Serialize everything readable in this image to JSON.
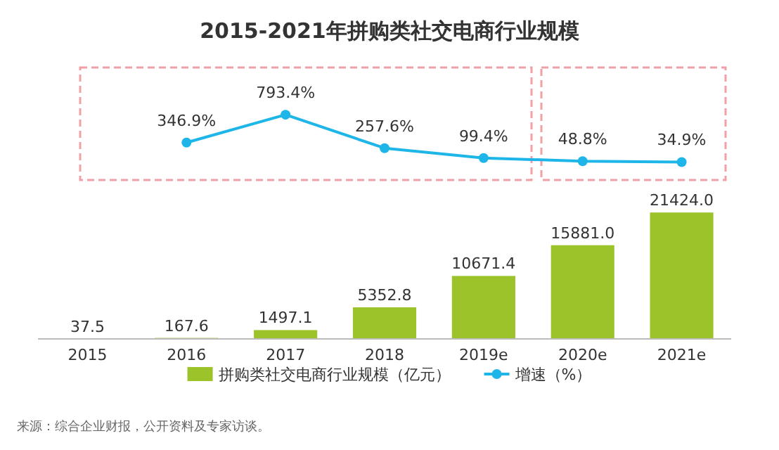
{
  "chart_data": {
    "type": "bar",
    "title": "2015-2021年拼购类社交电商行业规模",
    "categories": [
      "2015",
      "2016",
      "2017",
      "2018",
      "2019e",
      "2020e",
      "2021e"
    ],
    "series": [
      {
        "name": "拼购类社交电商行业规模（亿元）",
        "color": "#9dc32a",
        "values": [
          37.5,
          167.6,
          1497.1,
          5352.8,
          10671.4,
          15881.0,
          21424.0
        ],
        "value_labels": [
          "37.5",
          "167.6",
          "1497.1",
          "5352.8",
          "10671.4",
          "15881.0",
          "21424.0"
        ]
      },
      {
        "name": "增速（%）",
        "type": "line",
        "axis": "y2",
        "color": "#1eb6e8",
        "marker": "circle",
        "values": [
          null,
          346.9,
          793.4,
          257.6,
          99.4,
          48.8,
          34.9
        ],
        "value_labels": [
          null,
          "346.9%",
          "793.4%",
          "257.6%",
          "99.4%",
          "48.8%",
          "34.9%"
        ]
      }
    ],
    "ylim": [
      0,
      46000
    ],
    "y2lim": [
      -2800,
      1550
    ],
    "tick_labels": "x",
    "legend": "bottom",
    "annotations": [
      "来源：综合企业财报，公开资料及专家访谈。"
    ]
  }
}
